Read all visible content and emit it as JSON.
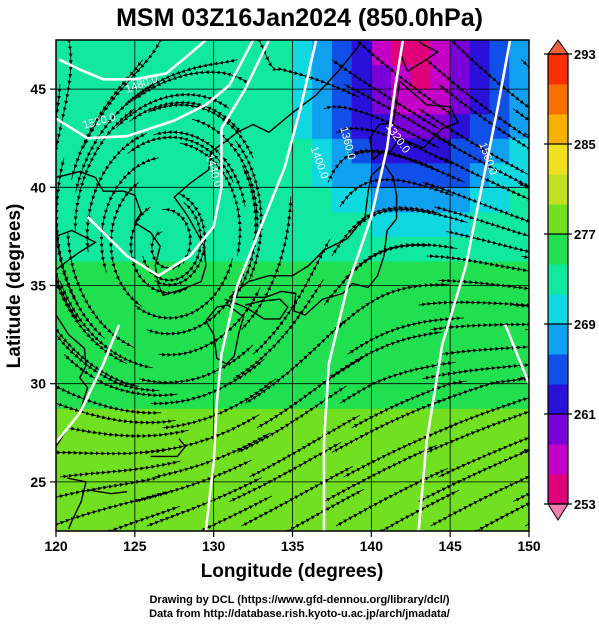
{
  "title": "MSM 03Z16Jan2024 (850.0hPa)",
  "xaxis": {
    "label": "Longitude (degrees)",
    "ticks": [
      "120",
      "125",
      "130",
      "135",
      "140",
      "145",
      "150"
    ],
    "range": [
      120,
      150
    ]
  },
  "yaxis": {
    "label": "Latitude  (degrees)",
    "ticks": [
      "25",
      "30",
      "35",
      "40",
      "45"
    ],
    "range": [
      22.5,
      47.5
    ]
  },
  "colorbar": {
    "labels": [
      "293",
      "285",
      "277",
      "269",
      "261",
      "253"
    ],
    "range": [
      253,
      293
    ],
    "colors": [
      "#e0007a",
      "#c400c8",
      "#7a00d8",
      "#2a10d8",
      "#1050e8",
      "#10a0f0",
      "#10d8e0",
      "#10e8a0",
      "#20e050",
      "#70e020",
      "#c0e020",
      "#f0e020",
      "#f8b000",
      "#f87000",
      "#f83000"
    ]
  },
  "contour_labels": [
    "1480.0",
    "1520.0",
    "1440.0",
    "1400.0",
    "1360.0",
    "1320.0",
    "1560.0"
  ],
  "credits": [
    "Drawing by DCL (https://www.gfd-dennou.org/library/dcl/)",
    "Data from http://database.rish.kyoto-u.ac.jp/arch/jmadata/"
  ]
}
